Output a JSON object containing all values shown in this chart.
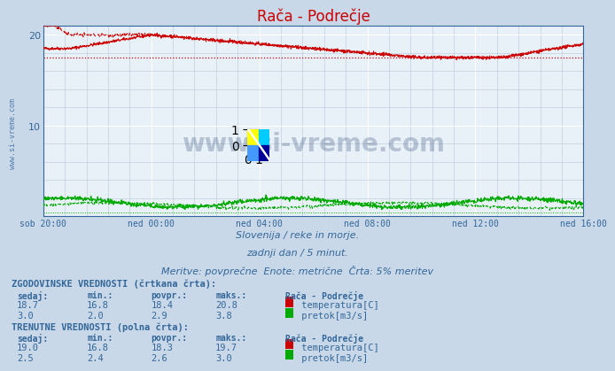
{
  "title": "Rača - Podrečje",
  "title_color": "#cc0000",
  "bg_color": "#c8d8e8",
  "plot_bg_color": "#e8f0f8",
  "grid_color_major": "#ffffff",
  "grid_color_minor": "#b8c8d8",
  "x_tick_labels": [
    "sob 20:00",
    "ned 00:00",
    "ned 04:00",
    "ned 08:00",
    "ned 12:00",
    "ned 16:00"
  ],
  "x_tick_positions": [
    0,
    240,
    480,
    720,
    960,
    1200
  ],
  "x_total_points": 1200,
  "y_min": 0,
  "y_max": 21,
  "y_ticks": [
    10,
    20
  ],
  "temp_hline": 17.5,
  "flow_hline": 0.4,
  "subtitle_line1": "Slovenija / reke in morje.",
  "subtitle_line2": "zadnji dan / 5 minut.",
  "subtitle_line3": "Meritve: povprečne  Enote: metrične  Črta: 5% meritev",
  "subtitle_color": "#336699",
  "text_color": "#336699",
  "hist_label": "ZGODOVINSKE VREDNOSTI (črtkana črta):",
  "curr_label": "TRENUTNE VREDNOSTI (polna črta):",
  "col_headers": [
    "sedaj:",
    "min.:",
    "povpr.:",
    "maks.:",
    "Rača - Podrečje"
  ],
  "hist_temp": [
    18.7,
    16.8,
    18.4,
    20.8
  ],
  "hist_flow": [
    3.0,
    2.0,
    2.9,
    3.8
  ],
  "curr_temp": [
    19.0,
    16.8,
    18.3,
    19.7
  ],
  "curr_flow": [
    2.5,
    2.4,
    2.6,
    3.0
  ],
  "temp_color": "#cc0000",
  "flow_color": "#00aa00",
  "watermark_text": "www.si-vreme.com",
  "watermark_color": "#1a3a6a",
  "watermark_alpha": 0.25,
  "left_label": "www.si-vreme.com",
  "logo_colors": [
    "#ffff00",
    "#00ccff",
    "#4488ff",
    "#000088"
  ]
}
